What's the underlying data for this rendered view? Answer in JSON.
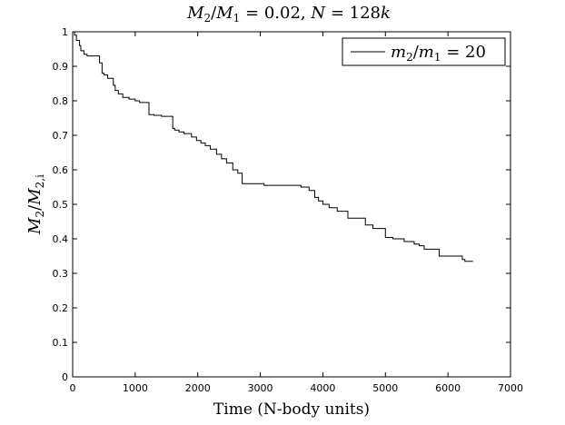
{
  "chart_data": {
    "type": "line",
    "title": {
      "text": "M2/M1 = 0.02, N = 128k",
      "m_italic": "M",
      "sub_2": "2",
      "slash": "/",
      "sub_1": "1",
      "eq_ratio": " = 0.02, ",
      "n_italic": "N",
      "eq_n": " = 128",
      "k_italic": "k"
    },
    "xlabel": "Time (N-body units)",
    "ylabel": {
      "text": "M2/M2,i",
      "m_italic": "M",
      "sub_2": "2",
      "slash": "/",
      "sub_2i": "2,i"
    },
    "xlim": [
      0,
      7000
    ],
    "ylim": [
      0,
      1
    ],
    "xticks": [
      "0",
      "1000",
      "2000",
      "3000",
      "4000",
      "5000",
      "6000",
      "7000"
    ],
    "yticks": [
      "0",
      "0.1",
      "0.2",
      "0.3",
      "0.4",
      "0.5",
      "0.6",
      "0.7",
      "0.8",
      "0.9",
      "1"
    ],
    "grid": false,
    "legend_position": "top-right",
    "series": [
      {
        "name": "m2/m1 = 20",
        "legend": {
          "m_italic": "m",
          "sub_2": "2",
          "slash": "/",
          "sub_1": "1",
          "eq": " = 20"
        },
        "color": "#000000",
        "step": true,
        "x": [
          0,
          30,
          60,
          110,
          130,
          180,
          230,
          430,
          470,
          500,
          560,
          650,
          680,
          730,
          800,
          900,
          1000,
          1070,
          1220,
          1300,
          1420,
          1600,
          1630,
          1700,
          1780,
          1900,
          1980,
          2050,
          2120,
          2200,
          2300,
          2380,
          2460,
          2560,
          2640,
          2710,
          3060,
          3650,
          3780,
          3870,
          3930,
          4000,
          4100,
          4230,
          4400,
          4680,
          4800,
          5000,
          5120,
          5300,
          5460,
          5540,
          5620,
          5860,
          6230,
          6270,
          6400
        ],
        "y": [
          1.0,
          0.99,
          0.975,
          0.96,
          0.945,
          0.935,
          0.93,
          0.91,
          0.88,
          0.875,
          0.865,
          0.845,
          0.83,
          0.82,
          0.81,
          0.805,
          0.8,
          0.795,
          0.76,
          0.758,
          0.755,
          0.72,
          0.715,
          0.71,
          0.705,
          0.695,
          0.685,
          0.678,
          0.67,
          0.66,
          0.645,
          0.632,
          0.62,
          0.6,
          0.59,
          0.56,
          0.555,
          0.55,
          0.54,
          0.52,
          0.51,
          0.5,
          0.49,
          0.48,
          0.46,
          0.44,
          0.43,
          0.404,
          0.4,
          0.392,
          0.385,
          0.38,
          0.37,
          0.35,
          0.34,
          0.335,
          0.335
        ]
      }
    ]
  }
}
